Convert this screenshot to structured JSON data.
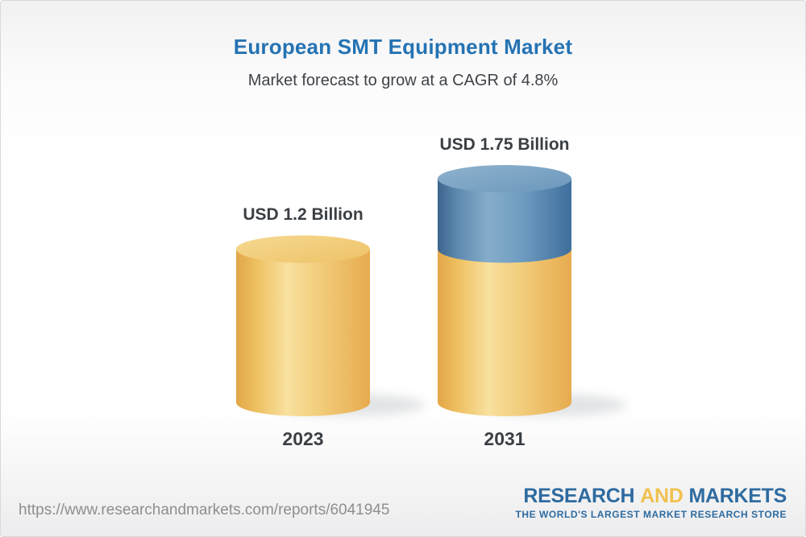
{
  "chart_data": {
    "type": "bar",
    "title": "European SMT Equipment Market",
    "subtitle": "Market forecast to grow at a CAGR of 4.8%",
    "cagr_percent": 4.8,
    "unit": "USD Billion",
    "categories": [
      "2023",
      "2031"
    ],
    "values": [
      1.2,
      1.75
    ],
    "value_labels": [
      "USD 1.2 Billion",
      "USD 1.75 Billion"
    ],
    "ylim": [
      0,
      1.75
    ],
    "growth_segment": {
      "from": 1.2,
      "to": 1.75,
      "color": "#4c7fac"
    },
    "bar_base_color": "#f0c467",
    "legend": "none",
    "grid": false
  },
  "footer": {
    "url": "https://www.researchandmarkets.com/reports/6041945",
    "logo": {
      "word1": "RESEARCH",
      "word2": "AND",
      "word3": "MARKETS",
      "tagline": "THE WORLD'S LARGEST MARKET RESEARCH STORE"
    }
  },
  "colors": {
    "title_blue": "#2573b3",
    "text_dark": "#3a3f44",
    "bar_gold": "#f0c467",
    "bar_blue": "#4c7fac",
    "url_gray": "#8e8e8e",
    "logo_blue": "#2e6ba0",
    "logo_gold": "#f0c14f"
  }
}
